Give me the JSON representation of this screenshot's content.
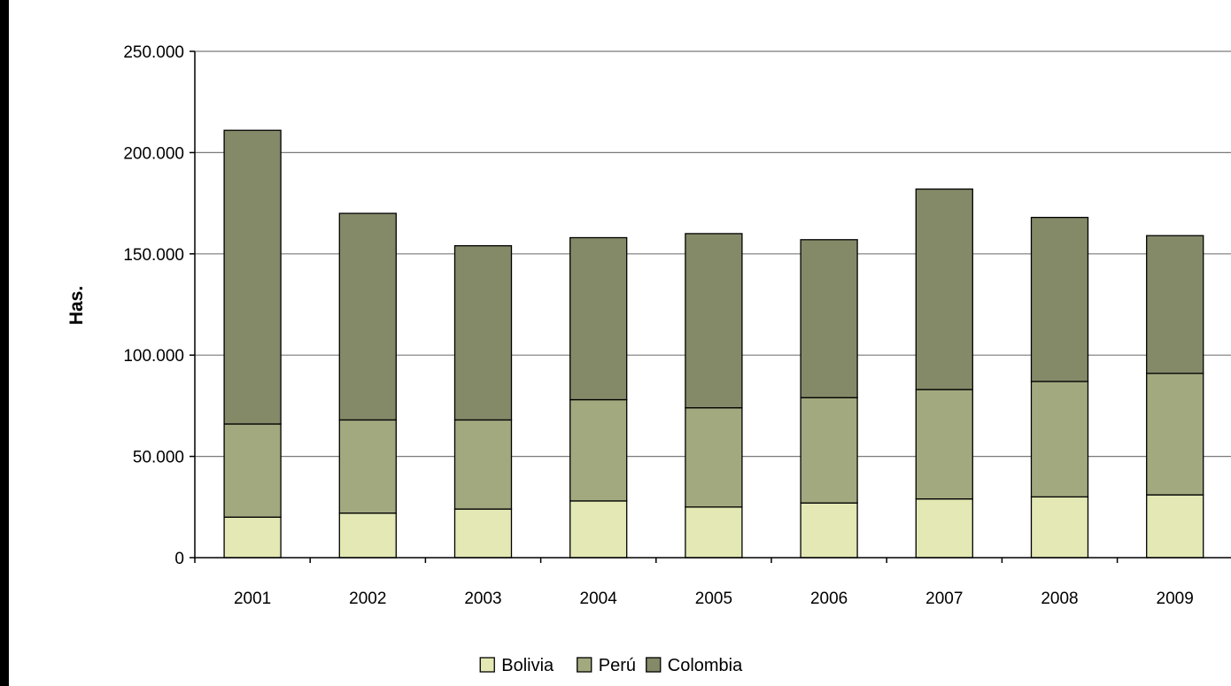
{
  "chart_data": {
    "type": "bar",
    "stacked": true,
    "title": "",
    "xlabel": "",
    "ylabel": "Has.",
    "ylim": [
      0,
      250000
    ],
    "yticks": [
      "0",
      "50.000",
      "100.000",
      "150.000",
      "200.000",
      "250.000"
    ],
    "ytick_values": [
      0,
      50000,
      100000,
      150000,
      200000,
      250000
    ],
    "grid": true,
    "legend_position": "bottom",
    "categories": [
      "2001",
      "2002",
      "2003",
      "2004",
      "2005",
      "2006",
      "2007",
      "2008",
      "2009"
    ],
    "series": [
      {
        "name": "Bolivia",
        "color": "#e3e8b4",
        "values": [
          20000,
          22000,
          24000,
          28000,
          25000,
          27000,
          29000,
          30000,
          31000
        ]
      },
      {
        "name": "Perú",
        "color": "#a3a97f",
        "values": [
          46000,
          46000,
          44000,
          50000,
          49000,
          52000,
          54000,
          57000,
          60000
        ]
      },
      {
        "name": "Colombia",
        "color": "#848a68",
        "values": [
          145000,
          102000,
          86000,
          80000,
          86000,
          78000,
          99000,
          81000,
          68000
        ]
      }
    ]
  }
}
